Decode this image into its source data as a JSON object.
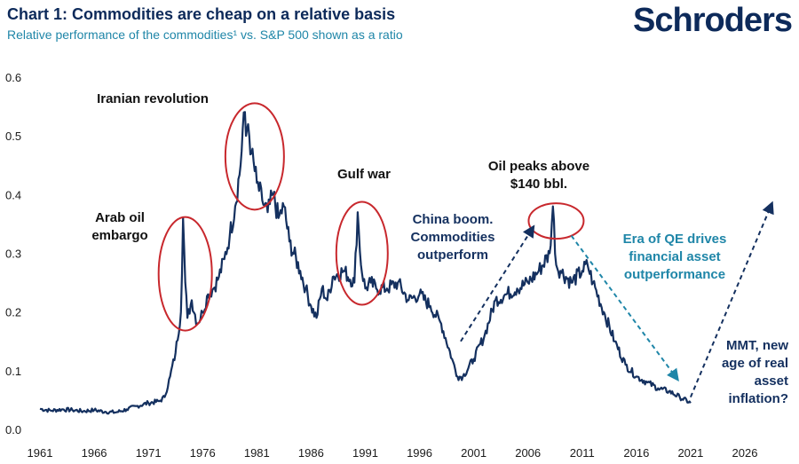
{
  "header": {
    "title": "Chart 1: Commodities are cheap on a relative basis",
    "subtitle": "Relative performance of the commodities¹ vs. S&P 500 shown as a ratio",
    "brand": "Schroders"
  },
  "colors": {
    "line": "#14305f",
    "circle": "#c8282d",
    "navy_arrow": "#14305f",
    "teal_arrow": "#1f86a8"
  },
  "chart_data": {
    "type": "line",
    "title": "Chart 1: Commodities are cheap on a relative basis",
    "subtitle": "Relative performance of the commodities¹ vs. S&P 500 shown as a ratio",
    "xlabel": "",
    "ylabel": "",
    "xlim": [
      1961,
      2030
    ],
    "ylim": [
      0.0,
      0.6
    ],
    "x_ticks": [
      "1961",
      "1966",
      "1971",
      "1976",
      "1981",
      "1986",
      "1991",
      "1996",
      "2001",
      "2006",
      "2011",
      "2016",
      "2021",
      "2026"
    ],
    "y_ticks": [
      "0.0",
      "0.1",
      "0.2",
      "0.3",
      "0.4",
      "0.5",
      "0.6"
    ],
    "grid": false,
    "series": [
      {
        "x": [
          1961,
          1962,
          1963,
          1964,
          1965,
          1966,
          1967,
          1968,
          1969,
          1970,
          1971,
          1972,
          1972.5,
          1973,
          1973.5,
          1974,
          1974.2,
          1974.4,
          1974.6,
          1975,
          1975.5,
          1976,
          1976.5,
          1977,
          1977.5,
          1978,
          1978.5,
          1979,
          1979.5,
          1979.8,
          1980,
          1980.2,
          1980.5,
          1981,
          1981.5,
          1982,
          1982.5,
          1983,
          1983.5,
          1984,
          1985,
          1985.5,
          1986,
          1986.5,
          1987,
          1987.5,
          1988,
          1989,
          1990,
          1990.3,
          1990.6,
          1991,
          1991.5,
          1992,
          1993,
          1994,
          1995,
          1996,
          1997,
          1998,
          1999,
          1999.5,
          2000,
          2001,
          2002,
          2003,
          2004,
          2005,
          2006,
          2007,
          2008,
          2008.3,
          2008.6,
          2009,
          2010,
          2011,
          2011.5,
          2012,
          2013,
          2014,
          2015,
          2016,
          2017,
          2018,
          2019,
          2020,
          2021
        ],
        "y": [
          0.035,
          0.032,
          0.034,
          0.033,
          0.031,
          0.033,
          0.03,
          0.029,
          0.034,
          0.04,
          0.045,
          0.048,
          0.055,
          0.09,
          0.13,
          0.2,
          0.36,
          0.25,
          0.19,
          0.22,
          0.18,
          0.2,
          0.23,
          0.24,
          0.26,
          0.29,
          0.33,
          0.38,
          0.45,
          0.54,
          0.5,
          0.52,
          0.47,
          0.42,
          0.39,
          0.37,
          0.4,
          0.36,
          0.38,
          0.32,
          0.27,
          0.24,
          0.21,
          0.19,
          0.24,
          0.22,
          0.26,
          0.27,
          0.25,
          0.37,
          0.28,
          0.24,
          0.25,
          0.24,
          0.24,
          0.25,
          0.22,
          0.23,
          0.21,
          0.18,
          0.12,
          0.09,
          0.09,
          0.12,
          0.16,
          0.22,
          0.23,
          0.24,
          0.25,
          0.27,
          0.3,
          0.38,
          0.28,
          0.27,
          0.25,
          0.27,
          0.28,
          0.25,
          0.2,
          0.15,
          0.11,
          0.09,
          0.08,
          0.07,
          0.065,
          0.055,
          0.045
        ]
      }
    ],
    "annotations": [
      {
        "text": [
          "Arab oil",
          "embargo"
        ],
        "x": 1974.5,
        "y": 0.36
      },
      {
        "text": [
          "Iranian revolution"
        ],
        "x": 1980.5,
        "y": 0.54
      },
      {
        "text": [
          "Gulf war"
        ],
        "x": 1990.5,
        "y": 0.37
      },
      {
        "text": [
          "China boom.",
          "Commodities",
          "outperform"
        ]
      },
      {
        "text": [
          "Oil peaks above",
          "$140 bbl."
        ],
        "x": 2008.3,
        "y": 0.38
      },
      {
        "text": [
          "Era of QE drives",
          "financial asset",
          "outperformance"
        ]
      },
      {
        "text": [
          "MMT, new",
          "age of real",
          "asset",
          "inflation?"
        ]
      }
    ]
  }
}
